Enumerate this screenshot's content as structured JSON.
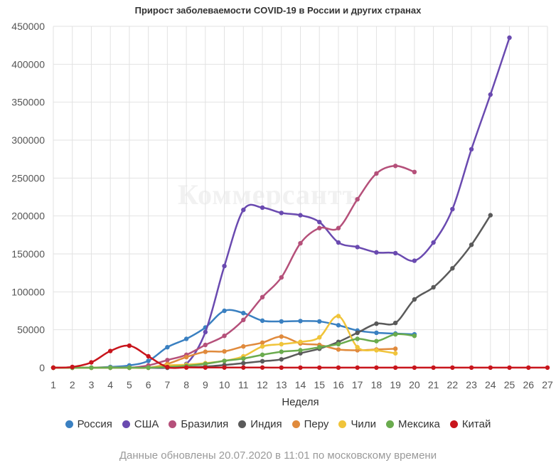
{
  "chart_data": {
    "type": "line",
    "title": "Прирост заболеваемости COVID-19 в России и других странах",
    "xlabel": "Неделя",
    "ylabel": "",
    "xlim": [
      1,
      27
    ],
    "ylim": [
      0,
      450000
    ],
    "yticks": [
      0,
      50000,
      100000,
      150000,
      200000,
      250000,
      300000,
      350000,
      400000,
      450000
    ],
    "xticks": [
      1,
      2,
      3,
      4,
      5,
      6,
      7,
      8,
      9,
      10,
      11,
      12,
      13,
      14,
      15,
      16,
      17,
      18,
      19,
      20,
      21,
      22,
      23,
      24,
      25,
      26,
      27
    ],
    "grid": true,
    "legend_position": "bottom",
    "series": [
      {
        "name": "Россия",
        "color": "#3a80c1",
        "x": [
          1,
          2,
          3,
          4,
          5,
          6,
          7,
          8,
          9,
          10,
          11,
          12,
          13,
          14,
          15,
          16,
          17,
          18,
          19,
          20
        ],
        "y": [
          0,
          0,
          0,
          1000,
          3000,
          9000,
          27000,
          38000,
          53000,
          75000,
          72000,
          62000,
          61000,
          61500,
          61000,
          56000,
          49000,
          46000,
          45000,
          44000
        ]
      },
      {
        "name": "США",
        "color": "#6a4ab0",
        "x": [
          1,
          2,
          3,
          4,
          5,
          6,
          7,
          8,
          9,
          10,
          11,
          12,
          13,
          14,
          15,
          16,
          17,
          18,
          19,
          20,
          21,
          22,
          23,
          24,
          25
        ],
        "y": [
          0,
          0,
          0,
          0,
          0,
          0,
          0,
          5000,
          47000,
          134000,
          208000,
          211000,
          204000,
          201000,
          192000,
          165000,
          159000,
          152000,
          151000,
          141000,
          165000,
          209000,
          288000,
          360000,
          435000
        ]
      },
      {
        "name": "Бразилия",
        "color": "#b5507a",
        "x": [
          1,
          2,
          3,
          4,
          5,
          6,
          7,
          8,
          9,
          10,
          11,
          12,
          13,
          14,
          15,
          16,
          17,
          18,
          19,
          20
        ],
        "y": [
          0,
          0,
          0,
          0,
          0,
          3000,
          10000,
          17000,
          30000,
          42000,
          63000,
          93000,
          119000,
          164000,
          184000,
          184000,
          222000,
          256000,
          266000,
          258000
        ]
      },
      {
        "name": "Индия",
        "color": "#5a5a5a",
        "x": [
          1,
          2,
          3,
          4,
          5,
          6,
          7,
          8,
          9,
          10,
          11,
          12,
          13,
          14,
          15,
          16,
          17,
          18,
          19,
          20,
          21,
          22,
          23,
          24
        ],
        "y": [
          0,
          0,
          0,
          0,
          0,
          0,
          0,
          500,
          1500,
          3500,
          6000,
          8500,
          11000,
          19000,
          25000,
          34000,
          46000,
          58000,
          59000,
          90000,
          106000,
          131000,
          162000,
          201000
        ]
      },
      {
        "name": "Перу",
        "color": "#e08a3c",
        "x": [
          1,
          2,
          3,
          4,
          5,
          6,
          7,
          8,
          9,
          10,
          11,
          12,
          13,
          14,
          15,
          16,
          17,
          18,
          19
        ],
        "y": [
          0,
          0,
          0,
          0,
          0,
          0,
          5000,
          14000,
          21000,
          21500,
          28000,
          33000,
          41000,
          32000,
          30000,
          24000,
          23000,
          24000,
          25000
        ]
      },
      {
        "name": "Чили",
        "color": "#f0c43a",
        "x": [
          1,
          2,
          3,
          4,
          5,
          6,
          7,
          8,
          9,
          10,
          11,
          12,
          13,
          14,
          15,
          16,
          17,
          18,
          19
        ],
        "y": [
          0,
          0,
          0,
          0,
          0,
          0,
          3000,
          4000,
          6000,
          9000,
          15000,
          28000,
          31000,
          34000,
          40000,
          68000,
          27000,
          23000,
          19000
        ]
      },
      {
        "name": "Мексика",
        "color": "#6aab4e",
        "x": [
          1,
          2,
          3,
          4,
          5,
          6,
          7,
          8,
          9,
          10,
          11,
          12,
          13,
          14,
          15,
          16,
          17,
          18,
          19,
          20
        ],
        "y": [
          0,
          0,
          0,
          0,
          0,
          0,
          1000,
          2500,
          5000,
          9000,
          12000,
          17000,
          21000,
          23000,
          27000,
          31000,
          38000,
          35000,
          44000,
          42000
        ]
      },
      {
        "name": "Китай",
        "color": "#c8151c",
        "x": [
          1,
          2,
          3,
          4,
          5,
          6,
          7,
          8,
          9,
          10,
          11,
          12,
          13,
          14,
          15,
          16,
          17,
          18,
          19,
          20,
          21,
          22,
          23,
          24,
          25,
          26,
          27
        ],
        "y": [
          0,
          1000,
          7000,
          22000,
          29000,
          15000,
          800,
          300,
          200,
          200,
          200,
          200,
          100,
          100,
          100,
          100,
          100,
          100,
          100,
          100,
          100,
          100,
          100,
          100,
          100,
          100,
          100
        ]
      }
    ]
  },
  "footnote": "Данные обновлены 20.07.2020 в 11:01 по московскому времени",
  "watermark": "Коммерсантъ"
}
